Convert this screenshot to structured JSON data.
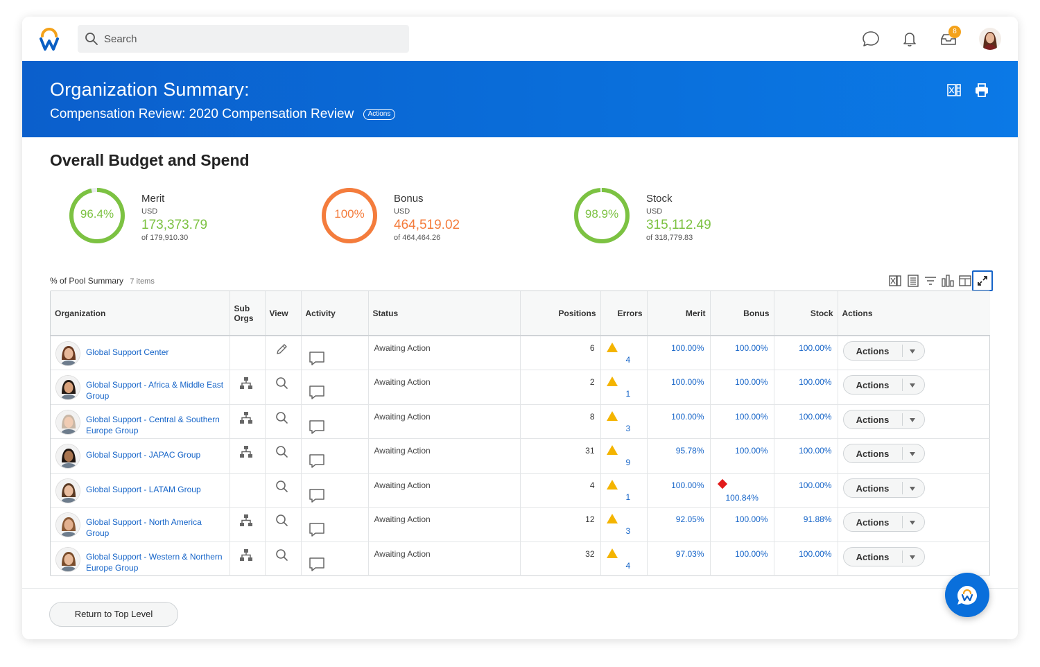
{
  "search": {
    "placeholder": "Search"
  },
  "topbar": {
    "inbox_badge": "8"
  },
  "banner": {
    "title": "Organization Summary:",
    "subtitle": "Compensation Review: 2020 Compensation Review",
    "actions_pill": "Actions"
  },
  "section": {
    "title": "Overall Budget and Spend"
  },
  "metrics": [
    {
      "label": "Merit",
      "currency": "USD",
      "value": "173,373.79",
      "of": "of 179,910.30",
      "percent_text": "96.4%",
      "percent": 96.4,
      "color": "#7cc242"
    },
    {
      "label": "Bonus",
      "currency": "USD",
      "value": "464,519.02",
      "of": "of 464,464.26",
      "percent_text": "100%",
      "percent": 100,
      "color": "#f47c3c"
    },
    {
      "label": "Stock",
      "currency": "USD",
      "value": "315,112.49",
      "of": "of 318,779.83",
      "percent_text": "98.9%",
      "percent": 98.9,
      "color": "#7cc242"
    }
  ],
  "pool": {
    "title": "% of Pool Summary",
    "count": "7 items"
  },
  "table": {
    "headers": {
      "organization": "Organization",
      "sub_orgs_1": "Sub",
      "sub_orgs_2": "Orgs",
      "view": "View",
      "activity": "Activity",
      "status": "Status",
      "positions": "Positions",
      "errors": "Errors",
      "merit": "Merit",
      "bonus": "Bonus",
      "stock": "Stock",
      "actions": "Actions"
    },
    "rows": [
      {
        "org": "Global Support Center",
        "sub_orgs": false,
        "view": "edit",
        "status": "Awaiting Action",
        "positions": "6",
        "errors": "4",
        "merit": "100.00%",
        "bonus": "100.00%",
        "bonus_flag": false,
        "stock": "100.00%",
        "action": "Actions"
      },
      {
        "org": "Global Support - Africa & Middle East Group",
        "sub_orgs": true,
        "view": "search",
        "status": "Awaiting Action",
        "positions": "2",
        "errors": "1",
        "merit": "100.00%",
        "bonus": "100.00%",
        "bonus_flag": false,
        "stock": "100.00%",
        "action": "Actions"
      },
      {
        "org": "Global Support - Central & Southern Europe Group",
        "sub_orgs": true,
        "view": "search",
        "status": "Awaiting Action",
        "positions": "8",
        "errors": "3",
        "merit": "100.00%",
        "bonus": "100.00%",
        "bonus_flag": false,
        "stock": "100.00%",
        "action": "Actions"
      },
      {
        "org": "Global Support - JAPAC Group",
        "sub_orgs": true,
        "view": "search",
        "status": "Awaiting Action",
        "positions": "31",
        "errors": "9",
        "merit": "95.78%",
        "bonus": "100.00%",
        "bonus_flag": false,
        "stock": "100.00%",
        "action": "Actions"
      },
      {
        "org": "Global Support - LATAM Group",
        "sub_orgs": false,
        "view": "search",
        "status": "Awaiting Action",
        "positions": "4",
        "errors": "1",
        "merit": "100.00%",
        "bonus": "100.84%",
        "bonus_flag": true,
        "stock": "100.00%",
        "action": "Actions"
      },
      {
        "org": "Global Support - North America Group",
        "sub_orgs": true,
        "view": "search",
        "status": "Awaiting Action",
        "positions": "12",
        "errors": "3",
        "merit": "92.05%",
        "bonus": "100.00%",
        "bonus_flag": false,
        "stock": "91.88%",
        "action": "Actions"
      },
      {
        "org": "Global Support - Western & Northern Europe Group",
        "sub_orgs": true,
        "view": "search",
        "status": "Awaiting Action",
        "positions": "32",
        "errors": "4",
        "merit": "97.03%",
        "bonus": "100.00%",
        "bonus_flag": false,
        "stock": "100.00%",
        "action": "Actions"
      }
    ]
  },
  "footer": {
    "return_label": "Return to Top Level"
  },
  "colors": {
    "brand_blue": "#0a6fdb",
    "link": "#1564c8",
    "warning": "#f4b400",
    "error": "#e21b1b",
    "merit_green": "#7cc242",
    "bonus_orange": "#f47c3c"
  }
}
